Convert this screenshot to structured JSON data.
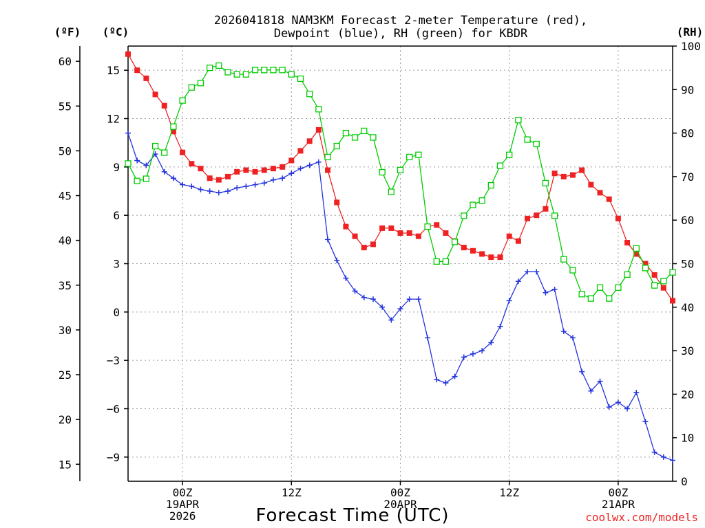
{
  "chart_data": {
    "type": "line",
    "title_lines": [
      "2026041818 NAM3KM Forecast 2-meter Temperature (red),",
      "Dewpoint (blue), RH (green) for KBDR"
    ],
    "xlabel": "Forecast Time (UTC)",
    "credit": "coolwx.com/models",
    "units": {
      "fahrenheit": "(ºF)",
      "celsius": "(ºC)",
      "rh": "(RH)"
    },
    "colors": {
      "temperature": "#ee2222",
      "dewpoint": "#2233dd",
      "rh": "#00cc00"
    },
    "x_range_hours": [
      0,
      60
    ],
    "y_celsius_range": [
      -10.5,
      16.5
    ],
    "y_rh_range": [
      0,
      100
    ],
    "left_celsius_ticks": [
      "15",
      "12",
      "9",
      "6",
      "3",
      "0",
      "−3",
      "−6",
      "−9"
    ],
    "left_celsius_values": [
      15,
      12,
      9,
      6,
      3,
      0,
      -3,
      -6,
      -9
    ],
    "left_fahrenheit_ticks": [
      "60",
      "55",
      "50",
      "45",
      "40",
      "35",
      "30",
      "25",
      "20",
      "15"
    ],
    "left_fahrenheit_values": [
      60,
      55,
      50,
      45,
      40,
      35,
      30,
      25,
      20,
      15
    ],
    "right_rh_ticks": [
      "100",
      "90",
      "80",
      "70",
      "60",
      "50",
      "40",
      "30",
      "20",
      "10",
      "0"
    ],
    "right_rh_values": [
      100,
      90,
      80,
      70,
      60,
      50,
      40,
      30,
      20,
      10,
      0
    ],
    "x_ticks": [
      {
        "hour": 6,
        "lines": [
          "00Z",
          "19APR",
          "2026"
        ]
      },
      {
        "hour": 18,
        "lines": [
          "12Z",
          "",
          ""
        ]
      },
      {
        "hour": 30,
        "lines": [
          "00Z",
          "20APR",
          ""
        ]
      },
      {
        "hour": 42,
        "lines": [
          "12Z",
          "",
          ""
        ]
      },
      {
        "hour": 54,
        "lines": [
          "00Z",
          "21APR",
          ""
        ]
      }
    ],
    "series": [
      {
        "name": "Temperature",
        "unit": "C",
        "marker": "filled-square",
        "values": [
          16.0,
          15.0,
          14.5,
          13.5,
          12.8,
          11.2,
          9.9,
          9.2,
          8.9,
          8.3,
          8.2,
          8.4,
          8.7,
          8.8,
          8.7,
          8.8,
          8.9,
          9.0,
          9.4,
          10.0,
          10.6,
          11.3,
          8.8,
          6.8,
          5.3,
          4.7,
          4.0,
          4.2,
          5.2,
          5.2,
          4.9,
          4.9,
          4.7,
          5.3,
          5.4,
          4.9,
          4.4,
          4.0,
          3.8,
          3.6,
          3.4,
          3.4,
          4.7,
          4.4,
          5.8,
          6.0,
          6.4,
          8.6,
          8.4,
          8.5,
          8.8,
          7.9,
          7.4,
          7.0,
          5.8,
          4.3,
          3.6,
          3.0,
          2.3,
          1.5,
          0.7
        ]
      },
      {
        "name": "Dewpoint",
        "unit": "C",
        "marker": "plus",
        "values": [
          11.1,
          9.4,
          9.1,
          9.8,
          8.7,
          8.3,
          7.9,
          7.8,
          7.6,
          7.5,
          7.4,
          7.5,
          7.7,
          7.8,
          7.9,
          8.0,
          8.2,
          8.3,
          8.6,
          8.9,
          9.1,
          9.3,
          4.5,
          3.2,
          2.1,
          1.3,
          0.9,
          0.8,
          0.3,
          -0.5,
          0.2,
          0.8,
          0.8,
          -1.6,
          -4.2,
          -4.4,
          -4.0,
          -2.8,
          -2.6,
          -2.4,
          -1.9,
          -0.9,
          0.7,
          1.9,
          2.5,
          2.5,
          1.2,
          1.4,
          -1.2,
          -1.6,
          -3.7,
          -4.9,
          -4.3,
          -5.9,
          -5.6,
          -6.0,
          -5.0,
          -6.8,
          -8.7,
          -9.0,
          -9.2
        ]
      },
      {
        "name": "Relative Humidity",
        "unit": "%",
        "marker": "open-square",
        "values": [
          73,
          69,
          69.5,
          77,
          75.5,
          81.5,
          87.5,
          90.5,
          91.5,
          95,
          95.5,
          94,
          93.5,
          93.5,
          94.5,
          94.5,
          94.5,
          94.5,
          93.5,
          92.5,
          89,
          85.5,
          74.5,
          77,
          80,
          79,
          80.5,
          79,
          71,
          66.5,
          71.5,
          74.5,
          75,
          58.5,
          50.5,
          50.5,
          55,
          61,
          63.5,
          64.5,
          68,
          72.5,
          75,
          83,
          78.5,
          77.5,
          68.5,
          61,
          51,
          48.5,
          43,
          42,
          44.5,
          42,
          44.5,
          47.5,
          53.5,
          49,
          45,
          46,
          48
        ]
      }
    ]
  }
}
